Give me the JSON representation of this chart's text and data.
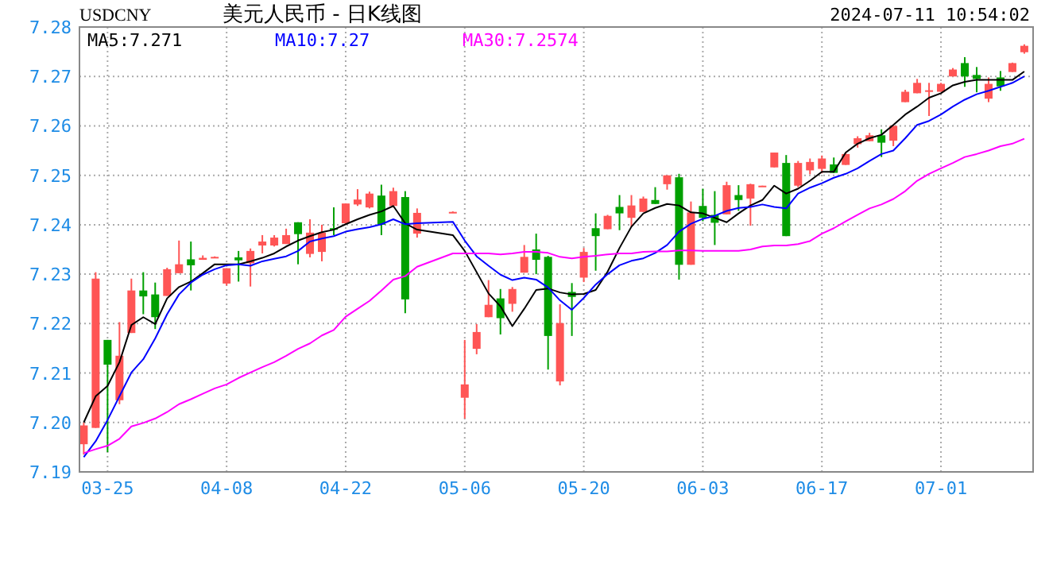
{
  "chart_data": {
    "type": "candlestick",
    "title": "美元人民币 - 日K线图",
    "annotations": [
      "USDCNY",
      "2024-07-11 10:54:02"
    ],
    "categories": [
      null,
      null,
      "03-25",
      null,
      null,
      null,
      null,
      null,
      null,
      null,
      null,
      null,
      "04-08",
      null,
      null,
      null,
      null,
      null,
      null,
      null,
      null,
      null,
      "04-22",
      null,
      null,
      null,
      null,
      null,
      null,
      null,
      null,
      null,
      "05-06",
      null,
      null,
      null,
      null,
      null,
      null,
      null,
      null,
      null,
      "05-20",
      null,
      null,
      null,
      null,
      null,
      null,
      null,
      null,
      null,
      "06-03",
      null,
      null,
      null,
      null,
      null,
      null,
      null,
      null,
      null,
      "06-17",
      null,
      null,
      null,
      null,
      null,
      null,
      null,
      null,
      null,
      "07-01",
      null,
      null,
      null,
      null,
      null,
      null,
      null
    ],
    "ylim": [
      7.19,
      7.28
    ],
    "yticks": [
      7.19,
      {
        "value": 7.2,
        "label": "7.20"
      },
      7.21,
      7.22,
      7.23,
      7.24,
      7.25,
      7.26,
      7.27,
      7.28
    ],
    "grid": true,
    "legend": "top left",
    "series": [
      {
        "ohlc": [
          [
            7.1956,
            7.2,
            7.1935,
            7.1994
          ],
          [
            7.1989,
            7.2304,
            7.1989,
            7.2291
          ],
          [
            7.2167,
            7.2167,
            7.194,
            7.2117
          ],
          [
            7.2045,
            7.2203,
            7.2037,
            7.2135
          ],
          [
            7.2181,
            7.2291,
            7.2181,
            7.2267
          ],
          [
            7.2267,
            7.2304,
            7.2219,
            7.2255
          ],
          [
            7.2259,
            7.2283,
            7.2189,
            7.2213
          ],
          [
            7.2256,
            7.2313,
            7.2256,
            7.231
          ],
          [
            7.2302,
            7.2368,
            7.2302,
            7.232
          ],
          [
            7.233,
            7.2366,
            7.2267,
            7.2318
          ],
          [
            7.2329,
            7.2338,
            7.2329,
            7.2333
          ],
          [
            7.2334,
            7.2336,
            7.2333,
            7.2335
          ],
          [
            7.2281,
            7.2312,
            7.2277,
            7.2312
          ],
          [
            7.2334,
            7.2347,
            7.2285,
            7.2328
          ],
          [
            7.2322,
            7.2352,
            7.2275,
            7.2347
          ],
          [
            7.2358,
            7.2379,
            7.2342,
            7.2366
          ],
          [
            7.2358,
            7.2379,
            7.2356,
            7.2374
          ],
          [
            7.2361,
            7.2392,
            7.2361,
            7.2379
          ],
          [
            7.2405,
            7.2405,
            7.232,
            7.2381
          ],
          [
            7.2341,
            7.2411,
            7.2334,
            7.2384
          ],
          [
            7.2345,
            7.24,
            7.2326,
            7.2384
          ],
          [
            7.2393,
            7.2435,
            7.2379,
            7.239
          ],
          [
            7.2403,
            7.2443,
            7.24,
            7.2443
          ],
          [
            7.2441,
            7.2472,
            7.2438,
            7.2451
          ],
          [
            7.2435,
            7.2467,
            7.2433,
            7.2463
          ],
          [
            7.2459,
            7.2481,
            7.2379,
            7.24
          ],
          [
            7.2438,
            7.2475,
            7.2435,
            7.2468
          ],
          [
            7.2456,
            7.2468,
            7.2221,
            7.2249
          ],
          [
            7.2382,
            7.2433,
            7.2374,
            7.2424
          ],
          null,
          null,
          [
            7.2425,
            7.2427,
            7.2425,
            7.2426
          ],
          [
            7.205,
            7.2167,
            7.2008,
            7.2077
          ],
          [
            7.2149,
            7.2199,
            7.2138,
            7.2183
          ],
          [
            7.2213,
            7.2288,
            7.2213,
            7.2238
          ],
          [
            7.2251,
            7.227,
            7.2178,
            7.2211
          ],
          [
            7.224,
            7.2274,
            7.2224,
            7.227
          ],
          [
            7.2303,
            7.2359,
            7.2303,
            7.2335
          ],
          [
            7.235,
            7.2382,
            7.23,
            7.2329
          ],
          [
            7.2335,
            7.2337,
            7.2107,
            7.2175
          ],
          [
            7.2083,
            7.2239,
            7.2075,
            7.2201
          ],
          [
            7.2264,
            7.2282,
            7.2175,
            7.2254
          ],
          [
            7.2293,
            7.2353,
            7.2284,
            7.2345
          ],
          [
            7.2393,
            7.2423,
            7.2307,
            7.2377
          ],
          [
            7.2391,
            7.242,
            7.2391,
            7.2418
          ],
          [
            7.2436,
            7.246,
            7.2389,
            7.2423
          ],
          [
            7.2414,
            7.246,
            7.2396,
            7.2439
          ],
          [
            7.2426,
            7.2457,
            7.2426,
            7.2453
          ],
          [
            7.245,
            7.2476,
            7.2442,
            7.2442
          ],
          [
            7.2482,
            7.25,
            7.2471,
            7.25
          ],
          [
            7.2496,
            7.2503,
            7.2289,
            7.2319
          ],
          [
            7.2319,
            7.2447,
            7.2319,
            7.2425
          ],
          [
            7.2438,
            7.2473,
            7.2407,
            7.2414
          ],
          [
            7.242,
            7.2468,
            7.2359,
            7.2404
          ],
          [
            7.2421,
            7.2487,
            7.2421,
            7.248
          ],
          [
            7.246,
            7.248,
            7.2428,
            7.245
          ],
          [
            7.2453,
            7.2483,
            7.2398,
            7.2482
          ],
          [
            7.2478,
            7.2479,
            7.2478,
            7.2479
          ],
          [
            7.2516,
            7.2546,
            7.2516,
            7.2546
          ],
          [
            7.2525,
            7.2541,
            7.2377,
            7.2377
          ],
          [
            7.2479,
            7.2529,
            7.2476,
            7.2525
          ],
          [
            7.251,
            7.2534,
            7.2502,
            7.2527
          ],
          [
            7.2513,
            7.254,
            7.2504,
            7.2534
          ],
          [
            7.2522,
            7.2536,
            7.2505,
            7.2505
          ],
          [
            7.2521,
            7.2545,
            7.2521,
            7.2543
          ],
          [
            7.2563,
            7.2579,
            7.2556,
            7.2575
          ],
          [
            7.2569,
            7.2586,
            7.2569,
            7.2581
          ],
          [
            7.2581,
            7.2593,
            7.2537,
            7.2566
          ],
          [
            7.257,
            7.26,
            7.2559,
            7.26
          ],
          [
            7.2648,
            7.2673,
            7.2648,
            7.2669
          ],
          [
            7.2666,
            7.2695,
            7.2666,
            7.2687
          ],
          [
            7.2671,
            7.2687,
            7.262,
            7.2672
          ],
          [
            7.2669,
            7.2687,
            7.2669,
            7.2685
          ],
          [
            7.27,
            7.2717,
            7.27,
            7.2714
          ],
          [
            7.2727,
            7.2739,
            7.2679,
            7.27
          ],
          [
            7.2703,
            7.2719,
            7.2668,
            7.2695
          ],
          [
            7.2655,
            7.2698,
            7.2648,
            7.2685
          ],
          [
            7.2698,
            7.2711,
            7.2671,
            7.268
          ],
          [
            7.2709,
            7.2728,
            7.2709,
            7.2727
          ],
          [
            7.2749,
            7.2765,
            7.2746,
            7.2762
          ]
        ],
        "colors": [
          "#ff5555",
          "#ff5555",
          "#00a000",
          "#ff5555",
          "#ff5555",
          "#00a000",
          "#00a000",
          "#ff5555",
          "#ff5555",
          "#00a000",
          "#ff5555",
          "#ff5555",
          "#ff5555",
          "#00a000",
          "#ff5555",
          "#ff5555",
          "#ff5555",
          "#ff5555",
          "#00a000",
          "#ff5555",
          "#ff5555",
          "#00a000",
          "#ff5555",
          "#ff5555",
          "#ff5555",
          "#00a000",
          "#ff5555",
          "#00a000",
          "#ff5555",
          null,
          null,
          "#ff5555",
          "#ff5555",
          "#ff5555",
          "#ff5555",
          "#00a000",
          "#ff5555",
          "#ff5555",
          "#00a000",
          "#00a000",
          "#ff5555",
          "#00a000",
          "#ff5555",
          "#00a000",
          "#ff5555",
          "#00a000",
          "#ff5555",
          "#ff5555",
          "#00a000",
          "#ff5555",
          "#00a000",
          "#ff5555",
          "#00a000",
          "#00a000",
          "#ff5555",
          "#00a000",
          "#ff5555",
          "#ff5555",
          "#ff5555",
          "#00a000",
          "#ff5555",
          "#ff5555",
          "#ff5555",
          "#00a000",
          "#ff5555",
          "#ff5555",
          "#ff5555",
          "#00a000",
          "#ff5555",
          "#ff5555",
          "#ff5555",
          "#ff5555",
          "#ff5555",
          "#ff5555",
          "#00a000",
          "#00a000",
          "#ff5555",
          "#00a000",
          "#ff5555",
          "#ff5555"
        ]
      },
      {
        "type": "line",
        "name": "MA5:7.271",
        "color": "#000000",
        "values": [
          7.2,
          7.2053,
          7.2074,
          7.2122,
          7.2197,
          7.2213,
          7.2199,
          7.2251,
          7.2274,
          7.2285,
          7.2302,
          7.232,
          7.232,
          7.232,
          7.2326,
          7.2333,
          7.2342,
          7.2356,
          7.2368,
          7.2377,
          7.2385,
          7.239,
          7.2401,
          7.2411,
          7.242,
          7.2427,
          7.2438,
          7.2403,
          7.239,
          null,
          null,
          7.2379,
          7.2347,
          7.2304,
          7.2261,
          7.2235,
          7.2195,
          7.223,
          7.2268,
          7.2271,
          7.2263,
          7.2259,
          7.226,
          7.2268,
          7.2305,
          7.2353,
          7.2396,
          7.2423,
          7.2434,
          7.2442,
          7.2439,
          7.2425,
          7.2423,
          7.2414,
          7.2405,
          7.2423,
          7.2439,
          7.245,
          7.2479,
          7.2463,
          7.2473,
          7.2489,
          7.2507,
          7.2507,
          7.2546,
          7.2564,
          7.2575,
          7.2582,
          7.2602,
          7.2623,
          7.2639,
          7.2657,
          7.2666,
          7.2682,
          7.2689,
          7.2693,
          7.2693,
          7.2693,
          7.2693,
          7.271
        ]
      },
      {
        "type": "line",
        "name": "MA10:7.27",
        "color": "#0000ff",
        "values": [
          7.193,
          7.1962,
          7.2005,
          7.2053,
          7.2101,
          7.2128,
          7.217,
          7.2219,
          7.2259,
          7.2283,
          7.2299,
          7.231,
          7.2318,
          7.232,
          7.2317,
          7.2326,
          7.2331,
          7.2336,
          7.2347,
          7.2366,
          7.2372,
          7.2377,
          7.2386,
          7.2391,
          7.2395,
          7.2401,
          7.2411,
          7.2401,
          7.2403,
          null,
          null,
          7.2406,
          7.2368,
          7.2336,
          7.2317,
          7.2299,
          7.2288,
          7.2293,
          7.2289,
          7.2273,
          7.2247,
          7.2228,
          7.2252,
          7.2279,
          7.23,
          7.2318,
          7.2327,
          7.2332,
          7.2343,
          7.2359,
          7.2386,
          7.2402,
          7.2412,
          7.2418,
          7.2428,
          7.2434,
          7.2436,
          7.2441,
          7.2436,
          7.2433,
          7.2463,
          7.2475,
          7.2484,
          7.2495,
          7.2503,
          7.2514,
          7.2529,
          7.2543,
          7.255,
          7.2575,
          7.2602,
          7.261,
          7.2623,
          7.2639,
          7.2653,
          7.2664,
          7.2671,
          7.2679,
          7.2687,
          7.27
        ]
      },
      {
        "type": "line",
        "name": "MA30:7.2574",
        "color": "#ff00ff",
        "values": [
          7.1938,
          7.1946,
          7.1953,
          7.1967,
          7.1992,
          7.1999,
          7.2008,
          7.2021,
          7.2037,
          7.2047,
          7.2058,
          7.2069,
          7.2077,
          7.209,
          7.2101,
          7.2112,
          7.2122,
          7.2135,
          7.2149,
          7.216,
          7.2176,
          7.2187,
          7.2214,
          7.223,
          7.2246,
          7.2267,
          7.2289,
          7.2296,
          7.2315,
          null,
          null,
          7.2342,
          7.2342,
          7.2342,
          7.2342,
          7.234,
          7.2342,
          7.2345,
          7.2345,
          7.2343,
          7.2335,
          7.2332,
          7.2335,
          7.2337,
          7.234,
          7.2342,
          7.2342,
          7.2345,
          7.2346,
          7.2346,
          7.2348,
          7.2348,
          7.2347,
          7.2347,
          7.2347,
          7.2347,
          7.235,
          7.2356,
          7.2358,
          7.2358,
          7.2361,
          7.2367,
          7.2382,
          7.2393,
          7.2407,
          7.242,
          7.2433,
          7.2441,
          7.2452,
          7.2468,
          7.2489,
          7.2503,
          7.2514,
          7.2525,
          7.2537,
          7.2543,
          7.255,
          7.2559,
          7.2564,
          7.2574
        ]
      }
    ]
  }
}
